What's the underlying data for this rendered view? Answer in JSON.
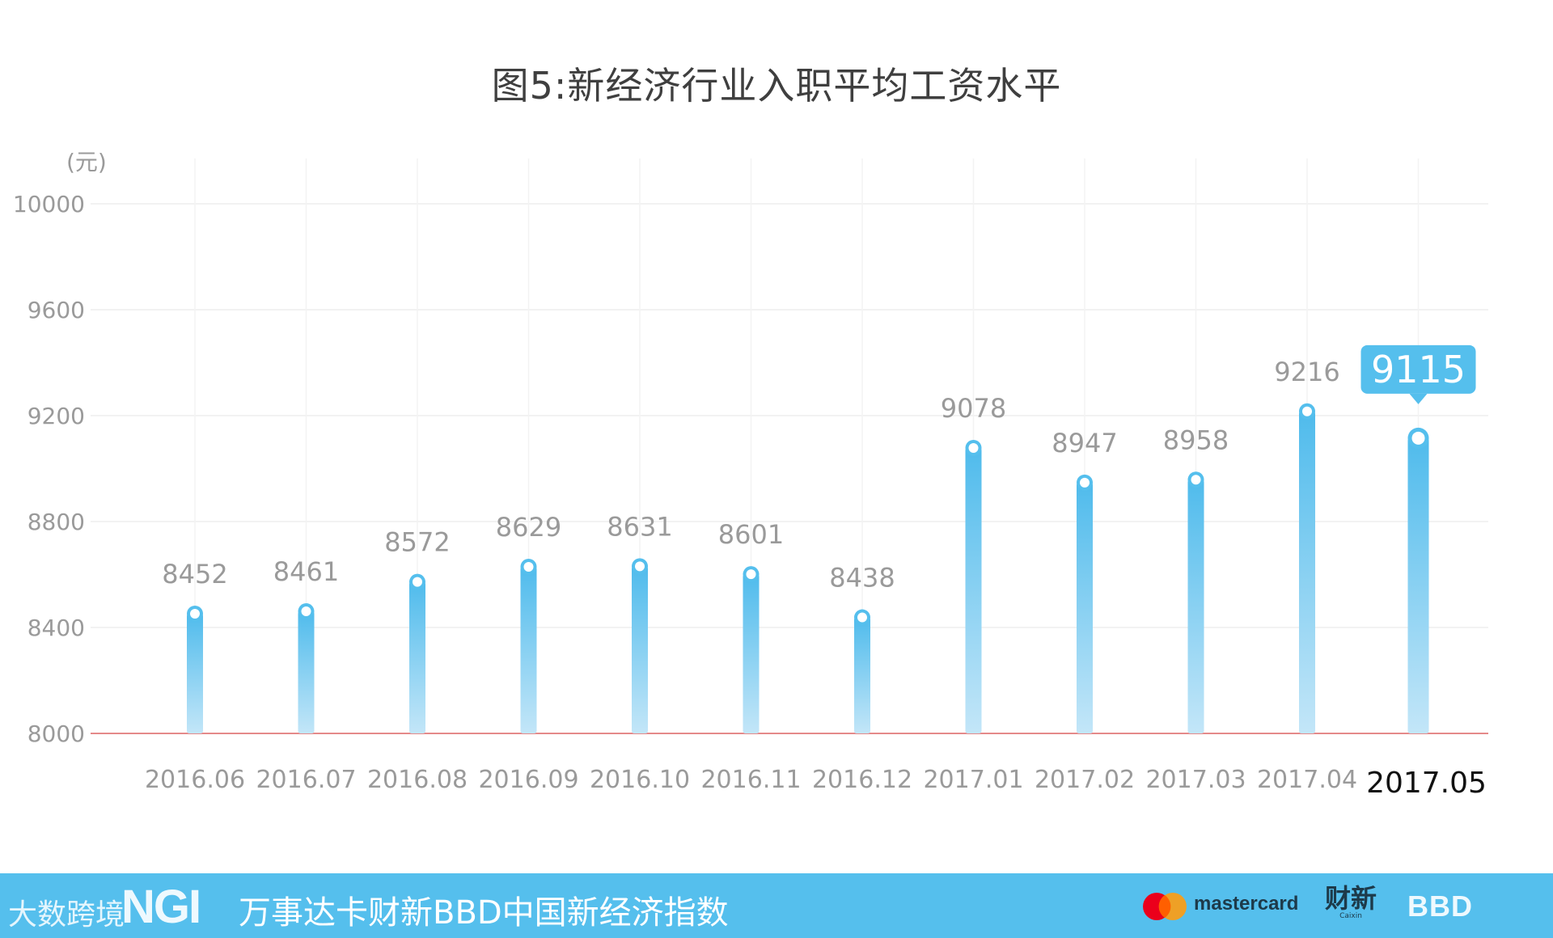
{
  "chart_data": {
    "type": "bar",
    "title": "图5:新经济行业入职平均工资水平",
    "ylabel": "(元)",
    "xlabel": "",
    "ylim": [
      8000,
      10000
    ],
    "yticks": [
      8000,
      8400,
      8800,
      9200,
      9600,
      10000
    ],
    "grid": true,
    "categories": [
      "2016.06",
      "2016.07",
      "2016.08",
      "2016.09",
      "2016.10",
      "2016.11",
      "2016.12",
      "2017.01",
      "2017.02",
      "2017.03",
      "2017.04",
      "2017.05"
    ],
    "values": [
      8452,
      8461,
      8572,
      8629,
      8631,
      8601,
      8438,
      9078,
      8947,
      8958,
      9216,
      9115
    ],
    "highlight_index": 11,
    "colors": {
      "bar_top": "#4fbbec",
      "bar_bottom": "#c3e6f8",
      "highlight": "#55bfed",
      "baseline": "#e58a8a",
      "grid": "#eeeeee",
      "label": "#9a9a9a"
    }
  },
  "footer": {
    "watermark": "大数跨境",
    "brand": "NGI",
    "index_name": "万事达卡财新BBD中国新经济指数",
    "mastercard": "mastercard",
    "caixin": "财新",
    "caixin_sub": "Caixin",
    "bbd": "BBD"
  }
}
